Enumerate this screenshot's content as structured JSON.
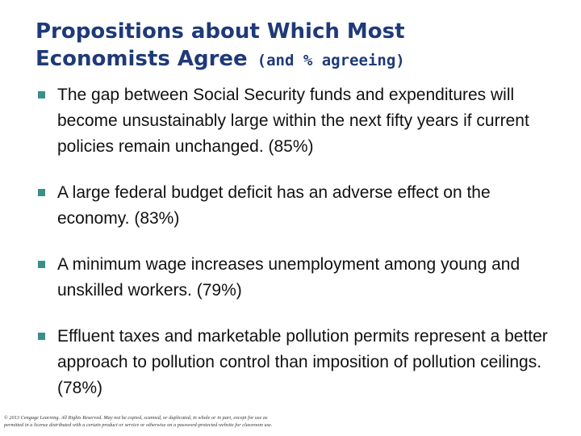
{
  "slide": {
    "title_line1": "Propositions about Which Most",
    "title_line2": "Economists Agree",
    "title_suffix": "(and % agreeing)",
    "bullets": [
      {
        "text": "The gap between Social Security funds and expenditures will become unsustainably large within the next fifty years if current policies remain unchanged.  (85%)"
      },
      {
        "text": "A large federal budget deficit has an adverse effect on the economy.  (83%)"
      },
      {
        "text": "A minimum wage increases unemployment among young and unskilled workers.  (79%)"
      },
      {
        "text": "Effluent taxes and marketable pollution permits represent a better approach to pollution control than imposition of pollution ceilings.  (78%)"
      }
    ],
    "footer_line1": "© 2013 Cengage Learning. All Rights Reserved. May not be copied, scanned, or duplicated, in whole or in part, except for use as",
    "footer_line2": "permitted in a license distributed with a certain product or service or otherwise on a password-protected website for classroom use."
  },
  "colors": {
    "title": "#1f3a78",
    "bullet_marker": "#3a8f8a",
    "body_text": "#111111",
    "background": "#ffffff"
  }
}
